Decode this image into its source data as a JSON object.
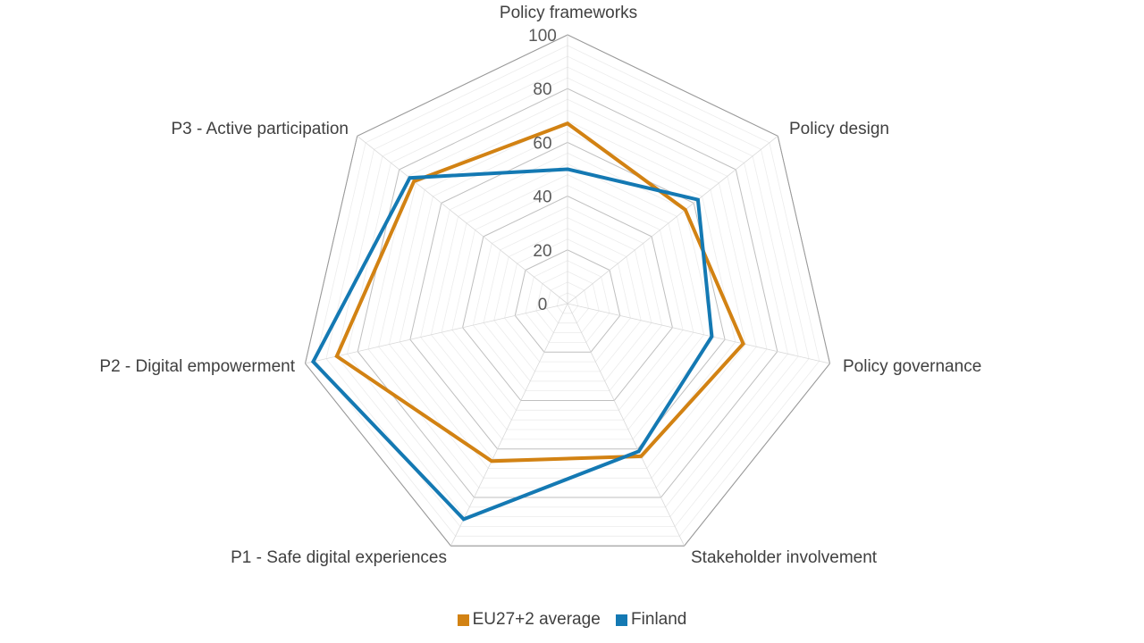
{
  "chart_data": {
    "type": "radar",
    "categories": [
      "Policy frameworks",
      "Policy design",
      "Policy governance",
      "Stakeholder involvement",
      "P1 - Safe digital experiences",
      "P2 - Digital empowerment",
      "P3 - Active participation"
    ],
    "rlim": [
      0,
      100
    ],
    "ticks": [
      0,
      20,
      40,
      60,
      80,
      100
    ],
    "series": [
      {
        "name": "EU27+2 average",
        "color": "#D28213",
        "values": [
          67,
          56,
          67,
          63,
          65,
          88,
          73
        ]
      },
      {
        "name": "Finland",
        "color": "#1479B3",
        "values": [
          50,
          62,
          55,
          61,
          89,
          97,
          75
        ]
      }
    ],
    "legend_position": "bottom"
  }
}
